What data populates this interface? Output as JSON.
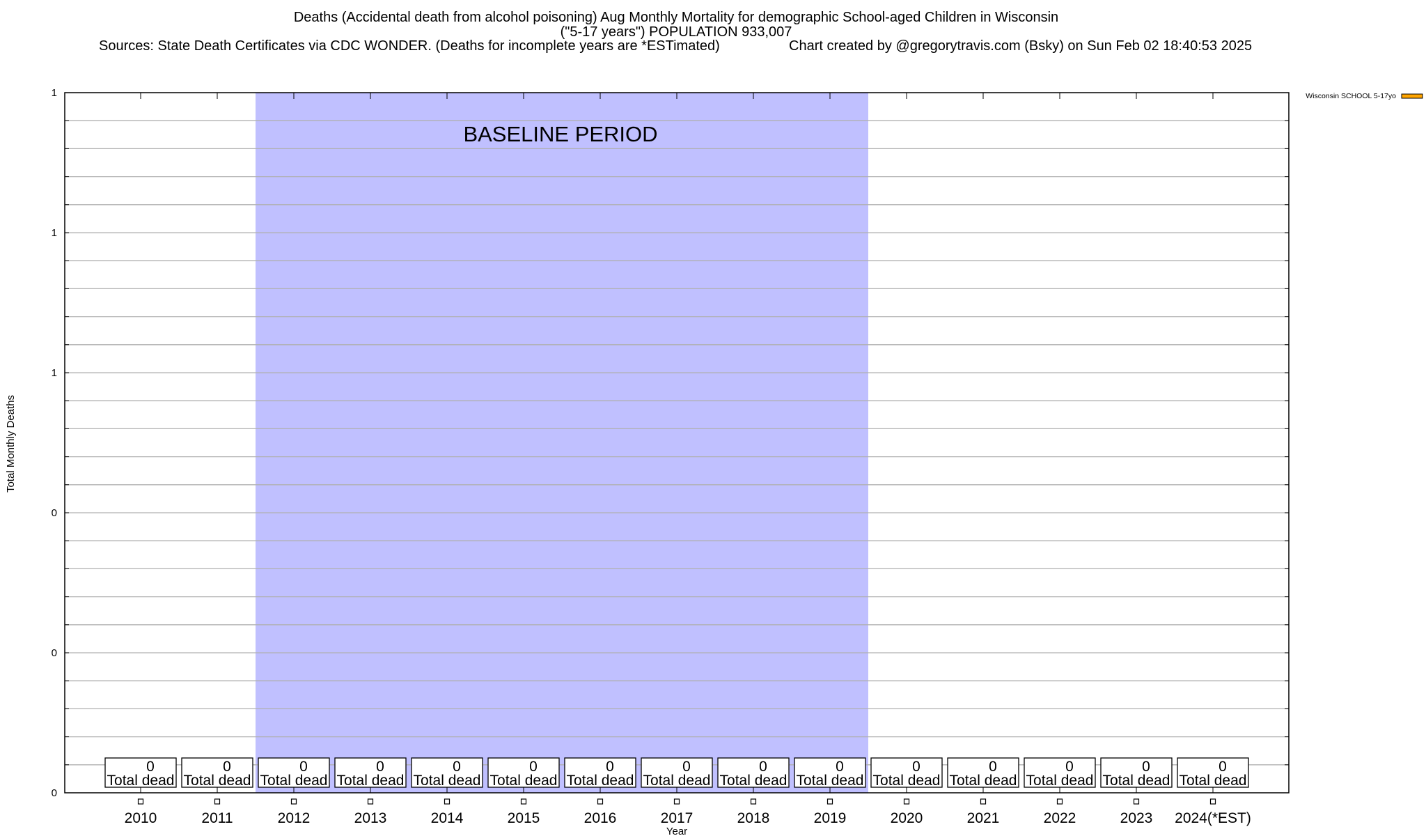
{
  "chart_data": {
    "type": "bar",
    "title": "Deaths (Accidental death from alcohol poisoning) Aug Monthly Mortality for demographic School-aged Children in Wisconsin",
    "subtitle": "(\"5-17 years\") POPULATION 933,007",
    "sources": "Sources: State Death Certificates via CDC WONDER. (Deaths for incomplete years are *ESTimated)",
    "credit": "Chart created by @gregorytravis.com (Bsky) on Sun Feb 02 18:40:53 2025",
    "xlabel": "Year",
    "ylabel": "Total Monthly Deaths",
    "ylim": [
      0,
      1
    ],
    "y_tick_labels": [
      "0",
      "0",
      "0",
      "1",
      "1",
      "1"
    ],
    "grid": true,
    "categories": [
      "2010",
      "2011",
      "2012",
      "2013",
      "2014",
      "2015",
      "2016",
      "2017",
      "2018",
      "2019",
      "2020",
      "2021",
      "2022",
      "2023",
      "2024(*EST)"
    ],
    "series": [
      {
        "name": "Wisconsin SCHOOL 5-17yo",
        "color": "#ffa500",
        "values": [
          0,
          0,
          0,
          0,
          0,
          0,
          0,
          0,
          0,
          0,
          0,
          0,
          0,
          0,
          0
        ]
      }
    ],
    "data_label_suffix": "Total dead",
    "baseline_period": {
      "label": "BASELINE PERIOD",
      "from": "2012",
      "to": "2019",
      "color": "#c0c0ff"
    },
    "legend_placement": "top-right outside"
  }
}
